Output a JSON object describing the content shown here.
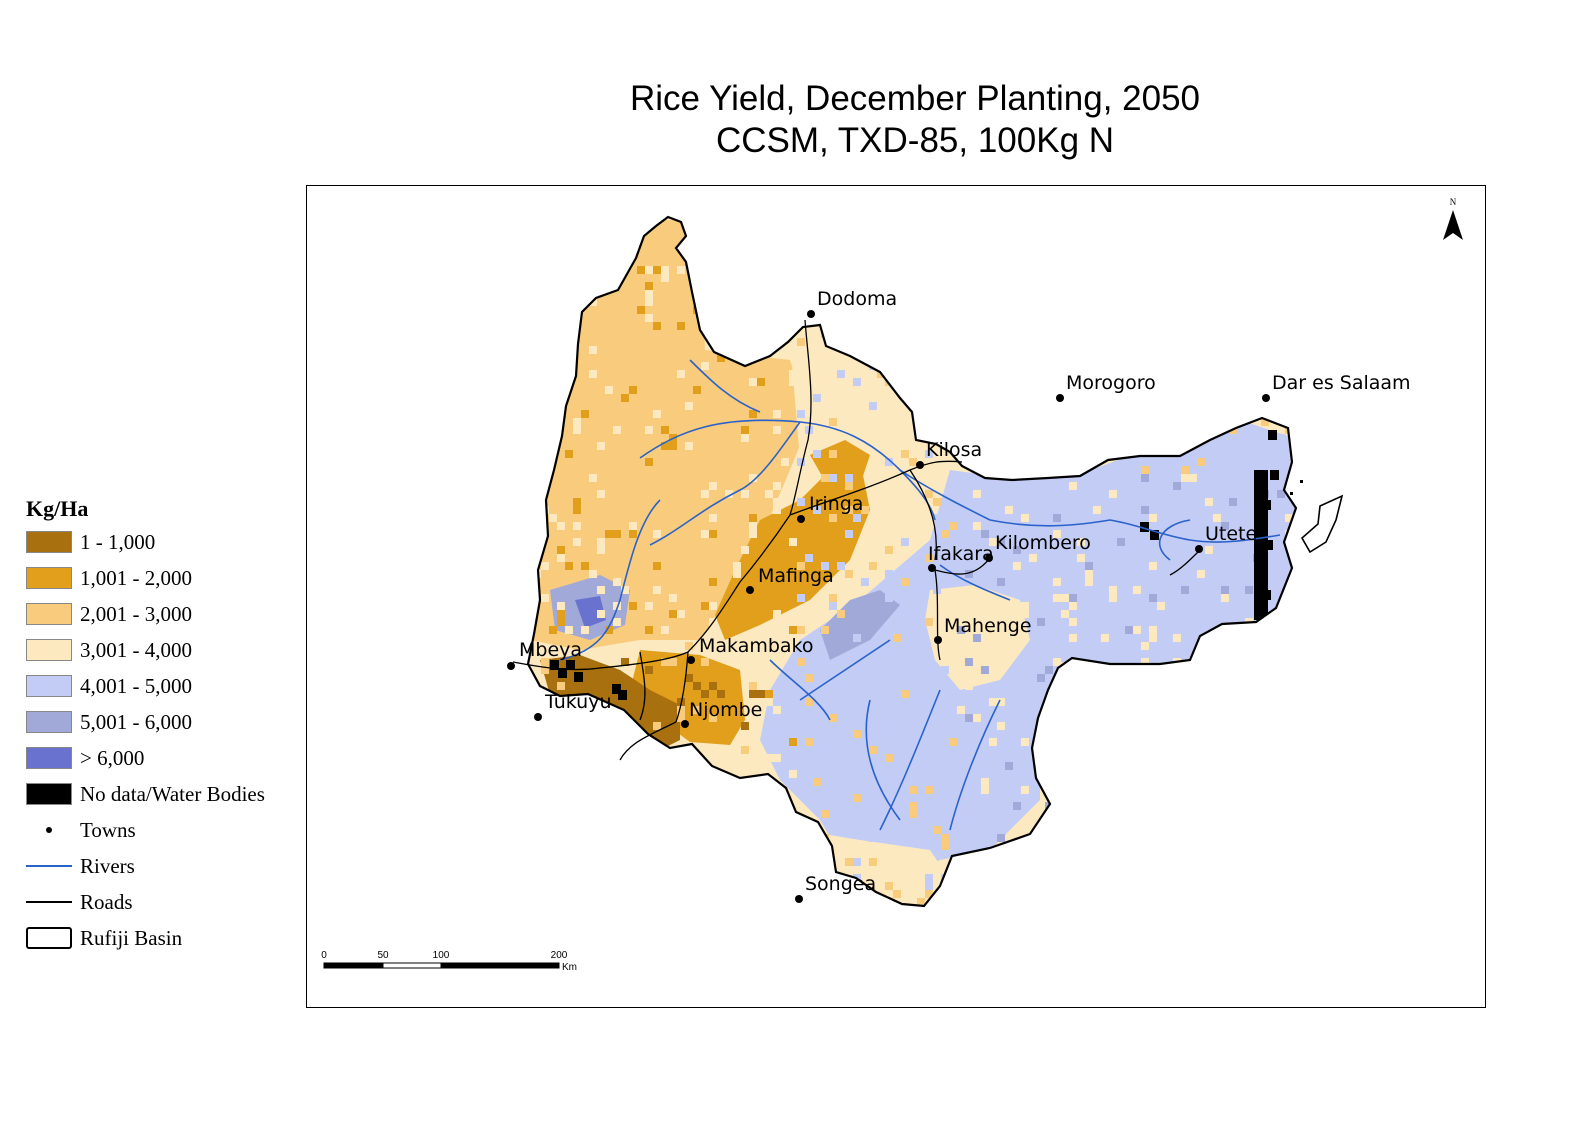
{
  "title": {
    "line1": "Rice Yield, December Planting, 2050",
    "line2": "CCSM, TXD-85, 100Kg N"
  },
  "legend": {
    "title": "Kg/Ha",
    "classes": [
      {
        "label": "1 - 1,000",
        "color": "#a8700e"
      },
      {
        "label": "1,001 - 2,000",
        "color": "#e19f1b"
      },
      {
        "label": "2,001 - 3,000",
        "color": "#f9cc7d"
      },
      {
        "label": "3,001 - 4,000",
        "color": "#fde9c0"
      },
      {
        "label": "4,001 - 5,000",
        "color": "#c2ccf5"
      },
      {
        "label": "5,001 - 6,000",
        "color": "#a1a9d9"
      },
      {
        "label": "> 6,000",
        "color": "#6973cf"
      },
      {
        "label": "No data/Water Bodies",
        "color": "#000000"
      }
    ],
    "towns_label": "Towns",
    "rivers_label": "Rivers",
    "roads_label": "Roads",
    "basin_label": "Rufiji Basin"
  },
  "colors": {
    "river": "#2a62c9",
    "road": "#000000",
    "basin_outline": "#000000"
  },
  "north_arrow": {
    "label": "N",
    "icon": "north-arrow-icon"
  },
  "scale_bar": {
    "ticks": [
      "0",
      "50",
      "100",
      "200"
    ],
    "unit": "Km"
  },
  "towns": [
    {
      "name": "Dodoma"
    },
    {
      "name": "Morogoro"
    },
    {
      "name": "Dar es Salaam"
    },
    {
      "name": "Kilosa"
    },
    {
      "name": "Iringa"
    },
    {
      "name": "Ifakara"
    },
    {
      "name": "Kilombero"
    },
    {
      "name": "Utete"
    },
    {
      "name": "Mafinga"
    },
    {
      "name": "Mahenge"
    },
    {
      "name": "Makambako"
    },
    {
      "name": "Mbeya"
    },
    {
      "name": "Tukuyu"
    },
    {
      "name": "Njombe"
    },
    {
      "name": "Songea"
    }
  ]
}
